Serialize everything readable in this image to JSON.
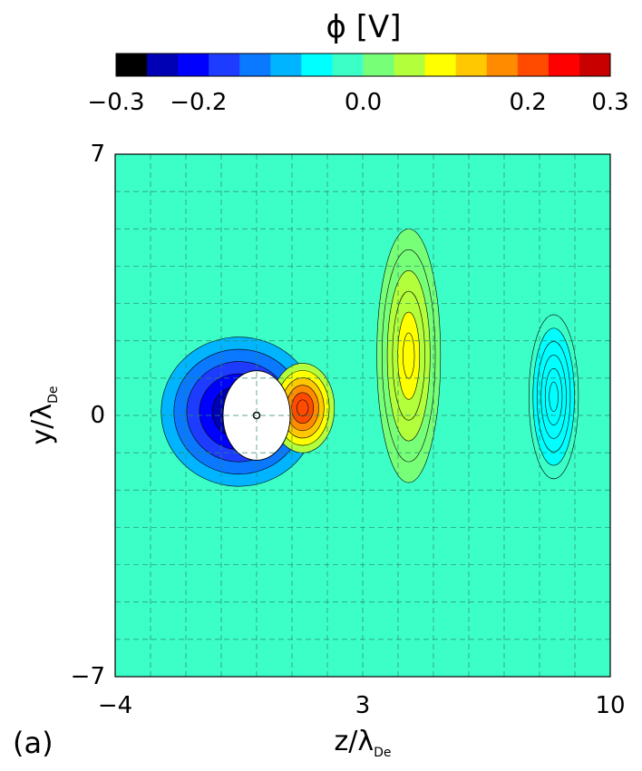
{
  "chart_data": {
    "type": "heatmap",
    "panel_label": "(a)",
    "colorbar": {
      "title": "ϕ  [V]",
      "range": [
        -0.3,
        0.3
      ],
      "tick_labels": [
        "−0.3",
        "−0.2",
        "0.0",
        "0.2",
        "0.3"
      ],
      "tick_values": [
        -0.3,
        -0.2,
        0.0,
        0.2,
        0.3
      ],
      "colors": [
        "#000000",
        "#0000b4",
        "#0000ff",
        "#1e3cff",
        "#0a78ff",
        "#00b4ff",
        "#00ffff",
        "#3cffc8",
        "#78ff78",
        "#b4ff3c",
        "#ffff00",
        "#ffc800",
        "#ff8c00",
        "#ff4b00",
        "#ff0000",
        "#c80000"
      ]
    },
    "x_axis": {
      "label_main": "z/λ",
      "label_sub": "De",
      "range": [
        -4,
        10
      ],
      "tick_labels": [
        "−4",
        "3",
        "10"
      ],
      "tick_values": [
        -4,
        3,
        10
      ]
    },
    "y_axis": {
      "label_main": "y/λ",
      "label_sub": "De",
      "range": [
        -7,
        7
      ],
      "tick_labels": [
        "7",
        "0",
        "−7"
      ],
      "tick_values": [
        7,
        0,
        -7
      ]
    },
    "grid": "dashed",
    "background_level": -0.02,
    "features": [
      {
        "kind": "obstacle",
        "center": [
          0.0,
          0.0
        ],
        "fill": "white"
      },
      {
        "kind": "well",
        "center": [
          -0.5,
          0.1
        ],
        "rx": 2.2,
        "ry": 2.0,
        "level": -0.28
      },
      {
        "kind": "peak",
        "center": [
          1.3,
          0.2
        ],
        "rx": 0.9,
        "ry": 1.2,
        "level": 0.22
      },
      {
        "kind": "band",
        "center": [
          4.3,
          1.6
        ],
        "rx": 0.9,
        "ry": 3.4,
        "level": 0.09
      },
      {
        "kind": "band",
        "center": [
          8.4,
          0.5
        ],
        "rx": 0.7,
        "ry": 2.2,
        "level": -0.07
      }
    ]
  }
}
